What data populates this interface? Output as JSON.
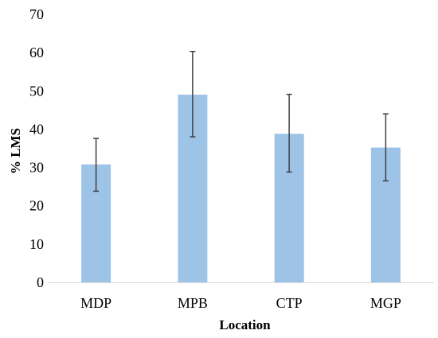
{
  "chart_data": {
    "type": "bar",
    "categories": [
      "MDP",
      "MPB",
      "CTP",
      "MGP"
    ],
    "values": [
      30.8,
      49.0,
      38.8,
      35.2
    ],
    "error_bars": {
      "lower": [
        23.8,
        38.0,
        28.8,
        26.5
      ],
      "upper": [
        37.6,
        60.3,
        49.1,
        44.0
      ]
    },
    "title": "",
    "xlabel": "Location",
    "ylabel": "% LMS",
    "ylim": [
      0,
      70
    ],
    "yticks": [
      0,
      10,
      20,
      30,
      40,
      50,
      60,
      70
    ],
    "ytick_labels": [
      "0",
      "10",
      "20",
      "30",
      "40",
      "50",
      "60",
      "70"
    ],
    "grid": false,
    "legend": "none",
    "colors": {
      "bar": "#9dc3e6",
      "error_bar": "#404040",
      "axis": "#d9d9d9"
    }
  }
}
